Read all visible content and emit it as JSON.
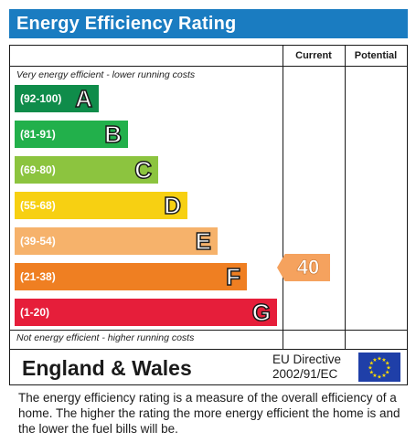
{
  "title": "Energy Efficiency Rating",
  "columns": {
    "current": "Current",
    "potential": "Potential"
  },
  "top_note": "Very energy efficient - lower running costs",
  "bottom_note": "Not energy efficient - higher running costs",
  "bands": [
    {
      "range": "(92-100)",
      "letter": "A",
      "color": "#0f8c4a"
    },
    {
      "range": "(81-91)",
      "letter": "B",
      "color": "#22b04b"
    },
    {
      "range": "(69-80)",
      "letter": "C",
      "color": "#8cc43f"
    },
    {
      "range": "(55-68)",
      "letter": "D",
      "color": "#f7d012"
    },
    {
      "range": "(39-54)",
      "letter": "E",
      "color": "#f6b26b"
    },
    {
      "range": "(21-38)",
      "letter": "F",
      "color": "#ef7f22"
    },
    {
      "range": "(1-20)",
      "letter": "G",
      "color": "#e61e3a"
    }
  ],
  "current_rating": {
    "value": "40",
    "color": "#f5a25e"
  },
  "footer": {
    "region": "England & Wales",
    "directive_line1": "EU Directive",
    "directive_line2": "2002/91/EC",
    "flag_color": "#1f3fa8",
    "star_color": "#ffdd00"
  },
  "description": "The energy efficiency rating is a measure of the overall efficiency of a home.  The higher the rating the more energy efficient the home is and the lower the fuel bills will be."
}
